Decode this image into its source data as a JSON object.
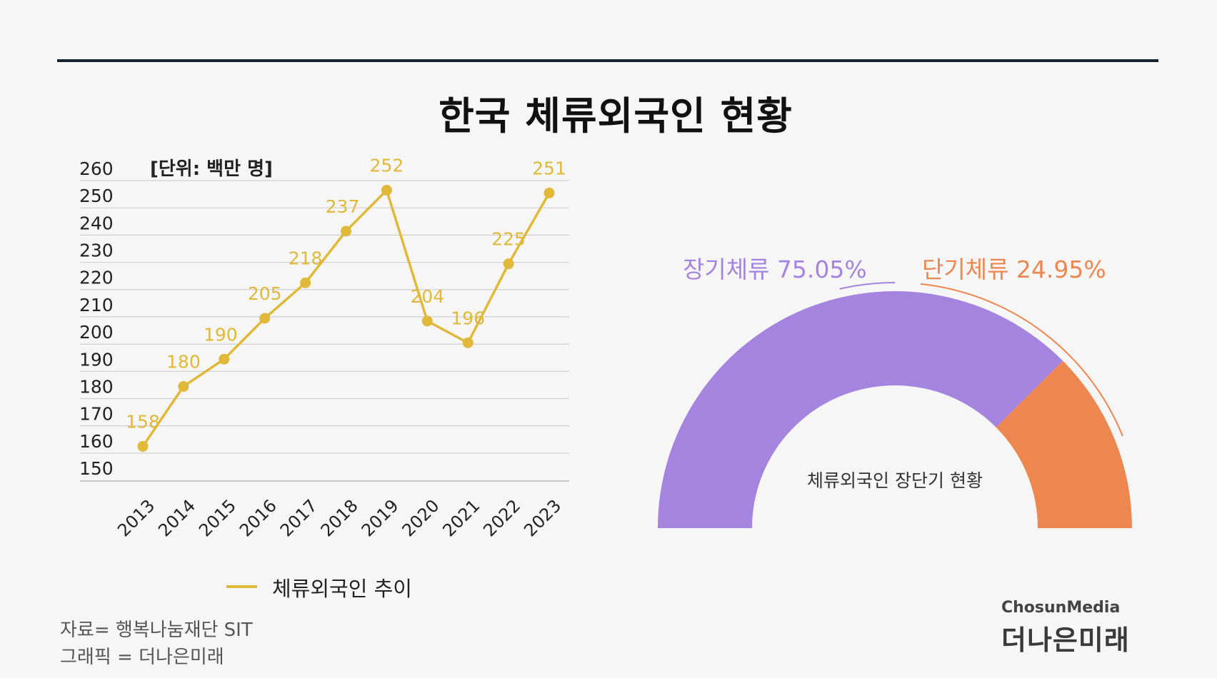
{
  "title": "한국 체류외국인 현황",
  "chart_data": [
    {
      "type": "line",
      "unit_label": "[단위: 백만 명]",
      "categories": [
        "2013",
        "2014",
        "2015",
        "2016",
        "2017",
        "2018",
        "2019",
        "2020",
        "2021",
        "2022",
        "2023"
      ],
      "series": [
        {
          "name": "체류외국인 추이",
          "values": [
            158,
            180,
            190,
            205,
            218,
            237,
            252,
            204,
            196,
            225,
            251
          ],
          "data_labels": [
            "158",
            "180",
            "190",
            "205",
            "218",
            "237",
            "252",
            "204",
            "196",
            "225",
            "251"
          ],
          "color": "#e0b93a"
        }
      ],
      "ylim": [
        150,
        260
      ],
      "yticks": [
        "260",
        "250",
        "240",
        "230",
        "220",
        "210",
        "200",
        "190",
        "180",
        "170",
        "160",
        "150"
      ],
      "grid": true,
      "legend_position": "bottom"
    },
    {
      "type": "pie",
      "shape": "semicircle-donut",
      "caption": "체류외국인 장단기 현황",
      "slices": [
        {
          "label": "장기체류",
          "value": 75.05,
          "text": "장기체류 75.05%",
          "color": "#a484de"
        },
        {
          "label": "단기체류",
          "value": 24.95,
          "text": "단기체류 24.95%",
          "color": "#ee8650"
        }
      ]
    }
  ],
  "footer": {
    "source": "자료= 행복나눔재단 SIT",
    "graphic": "그래픽 = 더나은미래"
  },
  "brand": {
    "top": "ChosunMedia",
    "bottom": "더나은미래"
  }
}
